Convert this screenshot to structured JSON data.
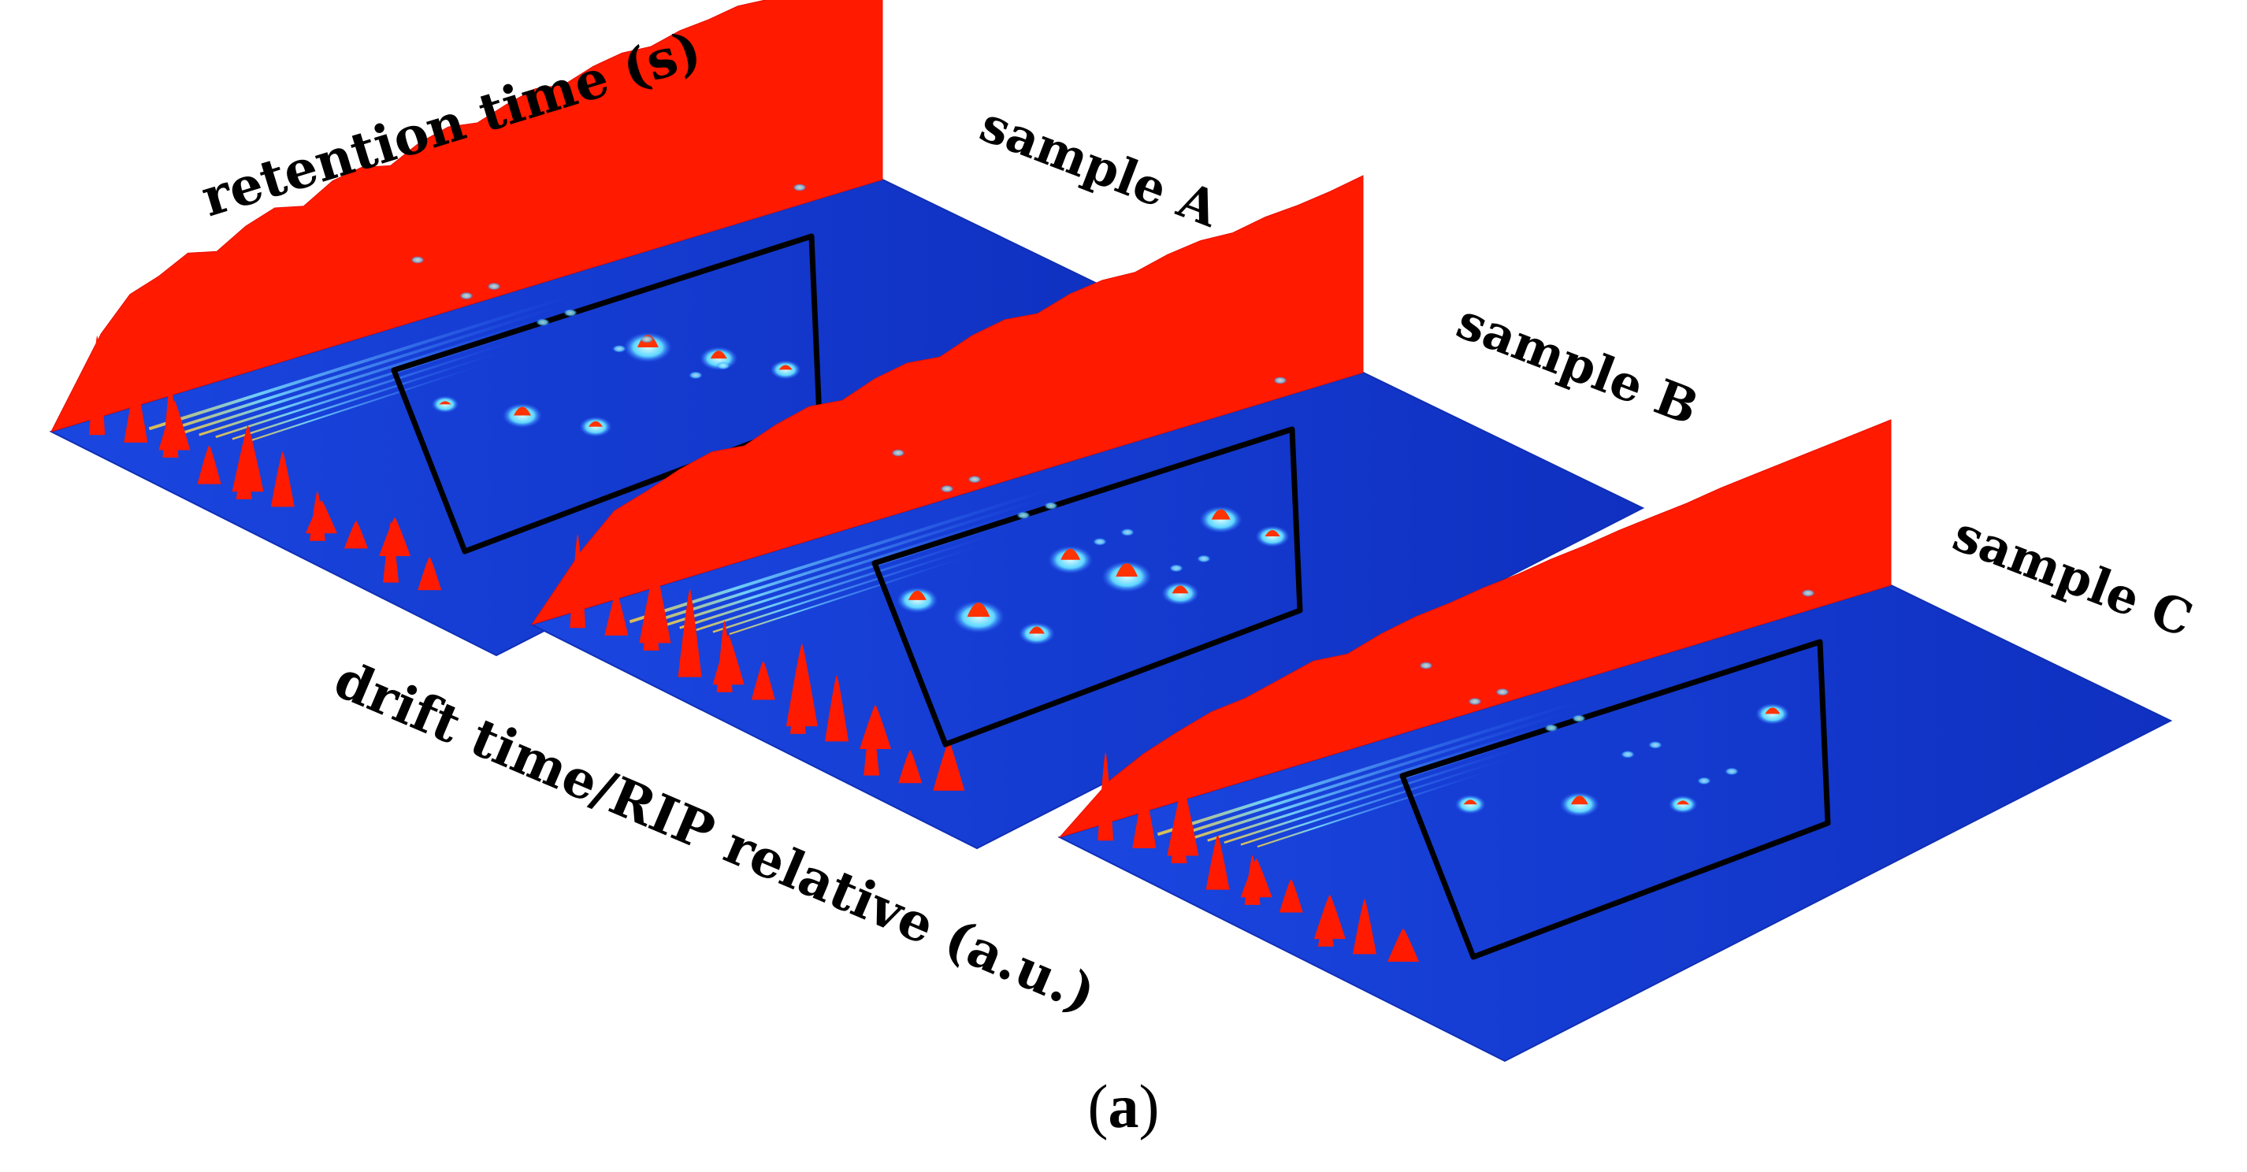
{
  "figure": {
    "panel_label": {
      "open": "(",
      "letter": "a",
      "close": ")"
    }
  },
  "chart_data": {
    "type": "surface-3d",
    "title": "",
    "xlabel": "drift time/RIP relative (a.u.)",
    "ylabel": "retention time (s)",
    "colors": {
      "background_plane": "#1237cf",
      "plane_edge": "#0f2fb5",
      "rip_peak": "#ff1a00",
      "hot_spot": "#ff3300",
      "warm_spot": "#ffd23a",
      "cool_spot": "#8fe7ff",
      "highlight_box": "#000000"
    },
    "samples": [
      {
        "name": "sample A",
        "rip_wall_rise": [
          0.35,
          0.48,
          0.52,
          0.58,
          0.55,
          0.62,
          0.66,
          0.63,
          0.7,
          0.72,
          0.69,
          0.75,
          0.78,
          0.76,
          0.8,
          0.83,
          0.81,
          0.85,
          0.87,
          0.86,
          0.89,
          0.9,
          0.92,
          0.91,
          0.94,
          0.96,
          0.97,
          1.0
        ],
        "front_spikes": [
          0.9,
          0.55,
          0.45,
          0.7,
          0.35,
          0.6,
          0.4,
          0.5,
          0.3,
          0.45,
          0.25,
          0.35,
          0.55,
          0.3
        ],
        "highlighted_spots": [
          0.2,
          0.55,
          0.35,
          0.8,
          0.5,
          0.3
        ]
      },
      {
        "name": "sample B",
        "rip_wall_rise": [
          0.3,
          0.45,
          0.5,
          0.56,
          0.6,
          0.58,
          0.64,
          0.68,
          0.66,
          0.72,
          0.75,
          0.73,
          0.79,
          0.82,
          0.8,
          0.85,
          0.87,
          0.86,
          0.9,
          0.92,
          0.91,
          0.94,
          0.95,
          0.97,
          1.0
        ],
        "front_spikes": [
          0.85,
          0.4,
          0.7,
          0.5,
          0.8,
          0.45,
          0.65,
          0.35,
          0.75,
          0.5,
          0.6,
          0.4,
          0.55,
          0.3,
          0.45
        ],
        "highlighted_spots": [
          0.6,
          0.9,
          0.45,
          0.7,
          0.85,
          0.5,
          0.65,
          0.4
        ]
      },
      {
        "name": "sample C",
        "rip_wall_rise": [
          0.25,
          0.35,
          0.42,
          0.48,
          0.5,
          0.55,
          0.6,
          0.58,
          0.64,
          0.68,
          0.7,
          0.73,
          0.75,
          0.78,
          0.8,
          0.83,
          0.85,
          0.87,
          0.9,
          0.92,
          0.94,
          0.96,
          0.98,
          1.0
        ],
        "front_spikes": [
          0.8,
          0.55,
          0.65,
          0.45,
          0.5,
          0.35,
          0.45,
          0.3,
          0.4,
          0.35,
          0.5,
          0.3
        ],
        "highlighted_spots": [
          0.3,
          0.55,
          0.25,
          0.4
        ]
      }
    ]
  }
}
